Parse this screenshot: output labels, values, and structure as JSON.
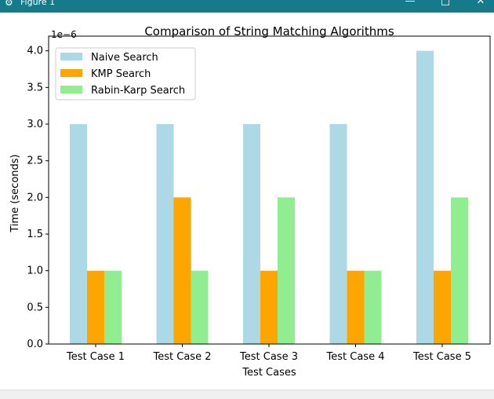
{
  "window": {
    "title": "Figure 1",
    "minimize_icon": "minimize-icon",
    "maximize_icon": "maximize-icon",
    "close_icon": "close-icon",
    "app_icon": "matplotlib-icon",
    "titlebar_color": "#157a8a"
  },
  "chart_data": {
    "type": "bar",
    "title": "Comparison of String Matching Algorithms",
    "xlabel": "Test Cases",
    "ylabel": "Time (seconds)",
    "offset_text": "1e−6",
    "ylim": [
      0,
      4.2
    ],
    "yticks": [
      "0.0",
      "0.5",
      "1.0",
      "1.5",
      "2.0",
      "2.5",
      "3.0",
      "3.5",
      "4.0"
    ],
    "categories": [
      "Test Case 1",
      "Test Case 2",
      "Test Case 3",
      "Test Case 4",
      "Test Case 5"
    ],
    "series": [
      {
        "name": "Naive Search",
        "color": "#add8e6",
        "values": [
          3.0,
          3.0,
          3.0,
          3.0,
          4.0
        ]
      },
      {
        "name": "KMP Search",
        "color": "#ffa500",
        "values": [
          1.0,
          2.0,
          1.0,
          1.0,
          1.0
        ]
      },
      {
        "name": "Rabin-Karp Search",
        "color": "#90ee90",
        "values": [
          1.0,
          1.0,
          2.0,
          1.0,
          2.0
        ]
      }
    ],
    "legend_position": "upper-left",
    "grid": false
  }
}
